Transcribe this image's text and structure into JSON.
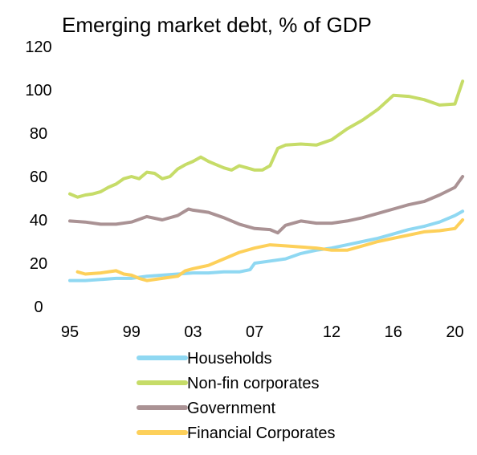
{
  "chart_data": {
    "type": "line",
    "title": "Emerging market debt, % of GDP",
    "xlabel": "",
    "ylabel": "",
    "x_range": [
      1995,
      2020.6
    ],
    "ylim": [
      0,
      120
    ],
    "y_ticks": [
      0,
      20,
      40,
      60,
      80,
      100,
      120
    ],
    "x_ticks": [
      {
        "label": "95",
        "year": 1995.0
      },
      {
        "label": "99",
        "year": 1999.0
      },
      {
        "label": "03",
        "year": 2003.0
      },
      {
        "label": "07",
        "year": 2007.0
      },
      {
        "label": "12",
        "year": 2012.0
      },
      {
        "label": "16",
        "year": 2016.0
      },
      {
        "label": "20",
        "year": 2020.0
      }
    ],
    "grid": false,
    "legend_position": "bottom",
    "series": [
      {
        "name": "Households",
        "color": "#8fd8f2",
        "points": [
          [
            1995.0,
            12
          ],
          [
            1996.0,
            12
          ],
          [
            1997.0,
            12.5
          ],
          [
            1998.0,
            13
          ],
          [
            1999.0,
            13
          ],
          [
            2000.0,
            14
          ],
          [
            2001.0,
            14.5
          ],
          [
            2002.0,
            15
          ],
          [
            2003.0,
            15.5
          ],
          [
            2004.0,
            15.5
          ],
          [
            2005.0,
            16
          ],
          [
            2006.0,
            16
          ],
          [
            2006.7,
            17
          ],
          [
            2007.0,
            20
          ],
          [
            2008.0,
            21
          ],
          [
            2009.0,
            22
          ],
          [
            2010.0,
            24.5
          ],
          [
            2011.0,
            26
          ],
          [
            2012.0,
            27
          ],
          [
            2013.0,
            28.5
          ],
          [
            2014.0,
            30
          ],
          [
            2015.0,
            31.5
          ],
          [
            2016.0,
            33.5
          ],
          [
            2017.0,
            35.5
          ],
          [
            2018.0,
            37
          ],
          [
            2019.0,
            39
          ],
          [
            2020.0,
            42
          ],
          [
            2020.5,
            44
          ]
        ]
      },
      {
        "name": "Non-fin corporates",
        "color": "#c6dc68",
        "points": [
          [
            1995.0,
            52
          ],
          [
            1995.5,
            50.5
          ],
          [
            1996.0,
            51.5
          ],
          [
            1996.5,
            52
          ],
          [
            1997.0,
            53
          ],
          [
            1997.5,
            55
          ],
          [
            1998.0,
            56.5
          ],
          [
            1998.5,
            59
          ],
          [
            1999.0,
            60
          ],
          [
            1999.5,
            59
          ],
          [
            2000.0,
            62
          ],
          [
            2000.5,
            61.5
          ],
          [
            2001.0,
            59
          ],
          [
            2001.5,
            60
          ],
          [
            2002.0,
            63.5
          ],
          [
            2002.5,
            65.5
          ],
          [
            2003.0,
            67
          ],
          [
            2003.5,
            69
          ],
          [
            2004.0,
            67
          ],
          [
            2004.5,
            65.5
          ],
          [
            2005.0,
            64
          ],
          [
            2005.5,
            63
          ],
          [
            2006.0,
            65
          ],
          [
            2006.5,
            64
          ],
          [
            2007.0,
            63
          ],
          [
            2007.5,
            63
          ],
          [
            2008.0,
            65
          ],
          [
            2008.5,
            73
          ],
          [
            2009.0,
            74.5
          ],
          [
            2010.0,
            75
          ],
          [
            2011.0,
            74.5
          ],
          [
            2012.0,
            77
          ],
          [
            2013.0,
            82
          ],
          [
            2014.0,
            86
          ],
          [
            2015.0,
            91
          ],
          [
            2016.0,
            97.5
          ],
          [
            2017.0,
            97
          ],
          [
            2018.0,
            95.5
          ],
          [
            2019.0,
            93
          ],
          [
            2020.0,
            93.5
          ],
          [
            2020.5,
            104
          ]
        ]
      },
      {
        "name": "Government",
        "color": "#aa9294",
        "points": [
          [
            1995.0,
            39.5
          ],
          [
            1996.0,
            39
          ],
          [
            1997.0,
            38
          ],
          [
            1998.0,
            38
          ],
          [
            1999.0,
            39
          ],
          [
            2000.0,
            41.5
          ],
          [
            2001.0,
            40
          ],
          [
            2002.0,
            42
          ],
          [
            2002.7,
            45
          ],
          [
            2003.0,
            44.5
          ],
          [
            2004.0,
            43.5
          ],
          [
            2005.0,
            41
          ],
          [
            2006.0,
            38
          ],
          [
            2007.0,
            36
          ],
          [
            2008.0,
            35.5
          ],
          [
            2008.5,
            34
          ],
          [
            2009.0,
            37.5
          ],
          [
            2010.0,
            39.5
          ],
          [
            2011.0,
            38.5
          ],
          [
            2012.0,
            38.5
          ],
          [
            2013.0,
            39.5
          ],
          [
            2014.0,
            41
          ],
          [
            2015.0,
            43
          ],
          [
            2016.0,
            45
          ],
          [
            2017.0,
            47
          ],
          [
            2018.0,
            48.5
          ],
          [
            2019.0,
            51.5
          ],
          [
            2020.0,
            55
          ],
          [
            2020.5,
            60
          ]
        ]
      },
      {
        "name": "Financial Corporates",
        "color": "#fdd05a",
        "points": [
          [
            1995.5,
            16
          ],
          [
            1996.0,
            15
          ],
          [
            1997.0,
            15.5
          ],
          [
            1998.0,
            16.5
          ],
          [
            1998.5,
            15
          ],
          [
            1999.0,
            14.5
          ],
          [
            1999.5,
            13
          ],
          [
            2000.0,
            12
          ],
          [
            2001.0,
            13
          ],
          [
            2002.0,
            14
          ],
          [
            2002.5,
            16.5
          ],
          [
            2003.0,
            17.5
          ],
          [
            2004.0,
            19
          ],
          [
            2005.0,
            22
          ],
          [
            2006.0,
            25
          ],
          [
            2007.0,
            27
          ],
          [
            2008.0,
            28.5
          ],
          [
            2009.0,
            28
          ],
          [
            2010.0,
            27.5
          ],
          [
            2011.0,
            27
          ],
          [
            2012.0,
            26
          ],
          [
            2013.0,
            26
          ],
          [
            2014.0,
            28
          ],
          [
            2015.0,
            30
          ],
          [
            2016.0,
            31.5
          ],
          [
            2017.0,
            33
          ],
          [
            2018.0,
            34.5
          ],
          [
            2019.0,
            35
          ],
          [
            2020.0,
            36
          ],
          [
            2020.5,
            40
          ]
        ]
      }
    ]
  }
}
